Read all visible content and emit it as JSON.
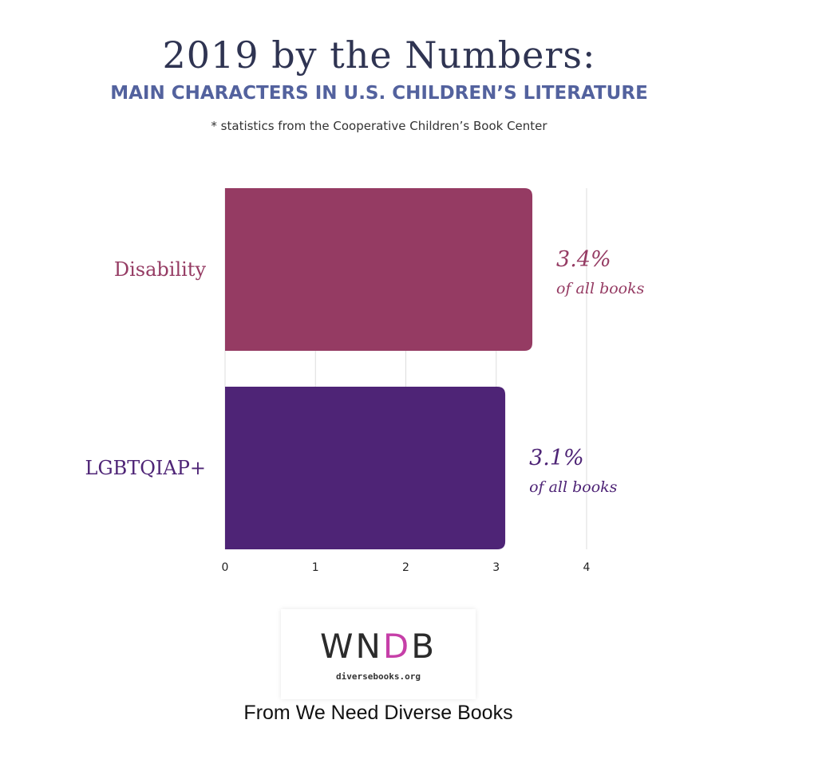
{
  "header": {
    "title": "2019 by the Numbers:",
    "subtitle": "MAIN CHARACTERS IN U.S. CHILDREN’S LITERATURE",
    "source_note": "* statistics from the Cooperative Children’s Book Center"
  },
  "chart_data": {
    "type": "bar",
    "orientation": "horizontal",
    "categories": [
      "Disability",
      "LGBTQIAP+"
    ],
    "values": [
      3.4,
      3.1
    ],
    "value_labels": [
      "3.4%",
      "3.1%"
    ],
    "value_sublabel": "of all books",
    "colors": [
      "#953b63",
      "#4e2476"
    ],
    "x_ticks": [
      "0",
      "1",
      "2",
      "3",
      "4"
    ],
    "xlim": [
      0,
      4
    ],
    "grid": true,
    "legend": "none"
  },
  "logo": {
    "mark": "WNDB",
    "mark_prefix": "WN",
    "mark_accent": "D",
    "mark_suffix": "B",
    "url": "diversebooks.org",
    "accent_color": "#c63fa8"
  },
  "credit": "From We Need Diverse Books"
}
